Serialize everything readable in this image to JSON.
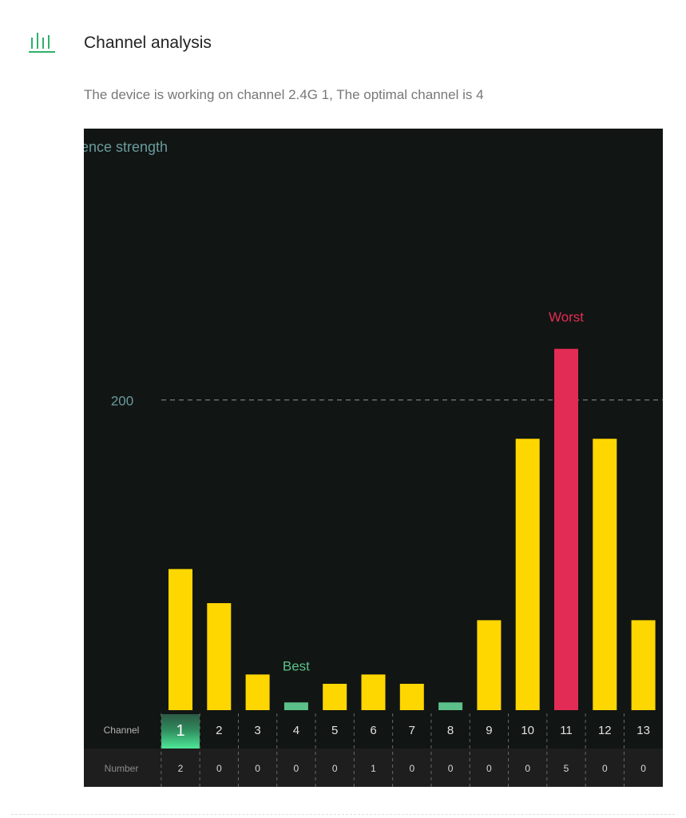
{
  "header": {
    "title": "Channel analysis",
    "icon": "signal-bars-icon",
    "description": "The device is working on channel 2.4G 1, The optimal channel is 4"
  },
  "colors": {
    "icon_accent": "#2fb06b",
    "chart_background": "#111513",
    "table_band": "#1e1e1e",
    "bar_default": "#ffd700",
    "bar_worst": "#e32c55",
    "bar_best": "#5cc08a",
    "current_channel": "#4ee898",
    "y_label": "#6a9b9e",
    "best_label": "#5cc08a",
    "worst_label": "#e32c55"
  },
  "chart_data": {
    "type": "bar",
    "ylabel": "ence strength",
    "y_tick_labels": [
      "200"
    ],
    "y_gridlines": [
      200
    ],
    "ylim": [
      0,
      375
    ],
    "categories": [
      "1",
      "2",
      "3",
      "4",
      "5",
      "6",
      "7",
      "8",
      "9",
      "10",
      "11",
      "12",
      "13"
    ],
    "values": [
      91,
      69,
      23,
      5,
      17,
      23,
      17,
      5,
      58,
      175,
      233,
      175,
      58
    ],
    "row_labels": {
      "channel": "Channel",
      "number": "Number"
    },
    "numbers": [
      "2",
      "0",
      "0",
      "0",
      "0",
      "1",
      "0",
      "0",
      "0",
      "0",
      "5",
      "0",
      "0"
    ],
    "current_channel": "1",
    "best_channel": "4",
    "best_label": "Best",
    "worst_channel": "11",
    "worst_label": "Worst"
  }
}
